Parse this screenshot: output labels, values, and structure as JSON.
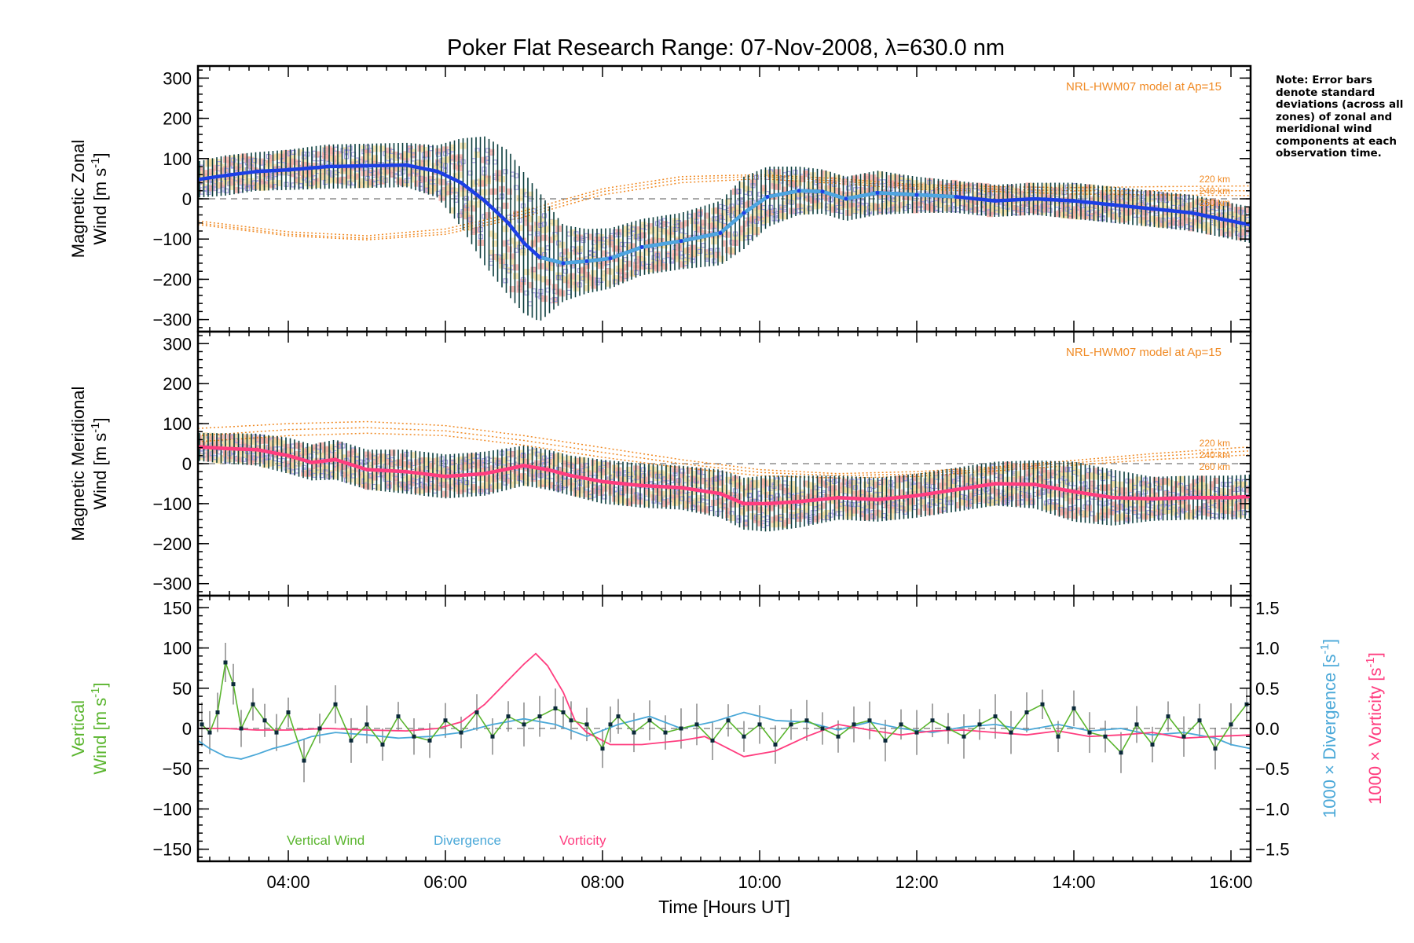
{
  "title": "Poker Flat Research Range: 07-Nov-2008, λ=630.0 nm",
  "note": "Note: Error bars denote standard deviations (across all zones) of zonal and meridional wind components at each observation time.",
  "xaxis": {
    "label": "Time [Hours UT]",
    "range": [
      2.85,
      16.25
    ],
    "ticks": [
      4,
      6,
      8,
      10,
      12,
      14,
      16
    ],
    "tick_labels": [
      "04:00",
      "06:00",
      "08:00",
      "10:00",
      "12:00",
      "14:00",
      "16:00"
    ]
  },
  "colors": {
    "zonal_mean": "#1d3fe6",
    "zonal_mean_light": "#4fa6e0",
    "meridional_mean": "#ff3d7f",
    "model": "#f08a24",
    "error_bar": "#0a3d3d",
    "zone_scatter": "#a9a0e0",
    "zone_pink": "#f7a8a0",
    "zone_yellow": "#f7dfa0",
    "vertical": "#5ab52e",
    "divergence": "#4aa8d8",
    "vorticity": "#ff3d7f"
  },
  "chart_data": [
    {
      "type": "line",
      "title": "Magnetic Zonal",
      "ylabel_line1": "Magnetic Zonal",
      "ylabel_line2": "Wind [m s",
      "ylabel_exp": "-1",
      "ylabel_close": "]",
      "ylim": [
        -330,
        330
      ],
      "yticks": [
        -300,
        -200,
        -100,
        0,
        100,
        200,
        300
      ],
      "model_label": "NRL-HWM07 model at Ap=15",
      "model_alt_labels": [
        "220 km",
        "240 km",
        "260 km"
      ],
      "model_curves": {
        "x": [
          2.85,
          4,
          5,
          6,
          7,
          8,
          9,
          10,
          11,
          12,
          13,
          14,
          15,
          16.25
        ],
        "series": [
          {
            "name": "220 km",
            "values": [
              -55,
              -82,
              -92,
              -75,
              -30,
              25,
              55,
              60,
              50,
              35,
              30,
              28,
              30,
              32
            ]
          },
          {
            "name": "240 km",
            "values": [
              -60,
              -88,
              -98,
              -82,
              -38,
              18,
              48,
              56,
              44,
              30,
              24,
              20,
              20,
              20
            ]
          },
          {
            "name": "260 km",
            "values": [
              -64,
              -92,
              -102,
              -88,
              -45,
              10,
              40,
              50,
              38,
              24,
              18,
              12,
              10,
              8
            ]
          }
        ]
      },
      "mean": {
        "x": [
          2.85,
          3.2,
          3.6,
          4.0,
          4.5,
          5.0,
          5.5,
          5.9,
          6.2,
          6.5,
          6.8,
          7.0,
          7.2,
          7.5,
          7.8,
          8.1,
          8.5,
          9.0,
          9.5,
          9.8,
          10.1,
          10.5,
          10.8,
          11.1,
          11.5,
          12.0,
          12.5,
          13.0,
          13.5,
          14.0,
          14.5,
          15.0,
          15.5,
          16.0,
          16.25
        ],
        "values": [
          48,
          58,
          68,
          72,
          80,
          82,
          84,
          68,
          40,
          -5,
          -60,
          -110,
          -145,
          -160,
          -155,
          -148,
          -120,
          -105,
          -85,
          -35,
          5,
          20,
          18,
          0,
          15,
          10,
          5,
          -5,
          0,
          -5,
          -15,
          -25,
          -35,
          -55,
          -65
        ]
      },
      "error_std": [
        45,
        50,
        48,
        50,
        55,
        55,
        55,
        65,
        110,
        160,
        180,
        175,
        160,
        95,
        80,
        75,
        70,
        70,
        80,
        90,
        75,
        60,
        55,
        55,
        55,
        45,
        40,
        40,
        40,
        45,
        45,
        45,
        45,
        45,
        45
      ]
    },
    {
      "type": "line",
      "title": "Magnetic Meridional",
      "ylabel_line1": "Magnetic Meridional",
      "ylabel_line2": "Wind [m s",
      "ylabel_exp": "-1",
      "ylabel_close": "]",
      "ylim": [
        -330,
        330
      ],
      "yticks": [
        -300,
        -200,
        -100,
        0,
        100,
        200,
        300
      ],
      "model_label": "NRL-HWM07 model at Ap=15",
      "model_alt_labels": [
        "220 km",
        "240 km",
        "260 km"
      ],
      "model_curves": {
        "x": [
          2.85,
          4,
          5,
          6,
          7,
          8,
          9,
          10,
          11,
          12,
          13,
          14,
          15,
          16.25
        ],
        "series": [
          {
            "name": "220 km",
            "values": [
              88,
              100,
              105,
              95,
              70,
              40,
              10,
              -15,
              -25,
              -20,
              -8,
              8,
              25,
              42
            ]
          },
          {
            "name": "240 km",
            "values": [
              70,
              85,
              90,
              82,
              58,
              28,
              0,
              -22,
              -30,
              -26,
              -12,
              2,
              18,
              32
            ]
          },
          {
            "name": "260 km",
            "values": [
              55,
              70,
              76,
              70,
              46,
              16,
              -10,
              -30,
              -36,
              -32,
              -18,
              -4,
              10,
              22
            ]
          }
        ]
      },
      "mean": {
        "x": [
          2.85,
          3.2,
          3.6,
          4.0,
          4.3,
          4.6,
          5.0,
          5.5,
          6.0,
          6.5,
          7.0,
          7.3,
          7.6,
          8.0,
          8.5,
          9.0,
          9.5,
          9.8,
          10.1,
          10.5,
          11.0,
          11.5,
          12.0,
          12.5,
          13.0,
          13.5,
          14.0,
          14.5,
          15.0,
          15.5,
          16.0,
          16.25
        ],
        "values": [
          42,
          38,
          35,
          20,
          3,
          10,
          -15,
          -20,
          -32,
          -25,
          -5,
          -15,
          -30,
          -45,
          -55,
          -60,
          -75,
          -100,
          -100,
          -95,
          -85,
          -90,
          -80,
          -65,
          -50,
          -52,
          -70,
          -85,
          -88,
          -85,
          -85,
          -82
        ]
      },
      "error_std": [
        35,
        38,
        40,
        45,
        45,
        50,
        50,
        55,
        55,
        55,
        50,
        50,
        50,
        55,
        55,
        55,
        60,
        65,
        70,
        65,
        55,
        55,
        55,
        55,
        55,
        60,
        75,
        70,
        55,
        55,
        55,
        55
      ]
    },
    {
      "type": "line",
      "ylabel_line1": "Vertical",
      "ylabel_line2": "Wind [m s",
      "ylabel_exp": "-1",
      "ylabel_close": "]",
      "ylim": [
        -165,
        165
      ],
      "yticks": [
        -150,
        -100,
        -50,
        0,
        50,
        100,
        150
      ],
      "y2label_div": "1000 × Divergence [s",
      "y2label_vort": "1000 × Vorticity [s",
      "y2_exp": "-1",
      "y2_close": "]",
      "y2lim": [
        -1.65,
        1.65
      ],
      "y2ticks": [
        -1.5,
        -1.0,
        -0.5,
        0.0,
        0.5,
        1.0,
        1.5
      ],
      "y2tick_labels": [
        "−1.5",
        "−1.0",
        "−0.5",
        "0.0",
        "0.5",
        "1.0",
        "1.5"
      ],
      "legend": [
        "Vertical Wind",
        "Divergence",
        "Vorticity"
      ],
      "series": [
        {
          "name": "Vertical Wind",
          "x": [
            2.9,
            3.0,
            3.1,
            3.2,
            3.3,
            3.4,
            3.55,
            3.7,
            3.85,
            4.0,
            4.2,
            4.4,
            4.6,
            4.8,
            5.0,
            5.2,
            5.4,
            5.6,
            5.8,
            6.0,
            6.2,
            6.4,
            6.6,
            6.8,
            7.0,
            7.2,
            7.4,
            7.5,
            7.6,
            7.8,
            8.0,
            8.1,
            8.2,
            8.4,
            8.6,
            8.8,
            9.0,
            9.2,
            9.4,
            9.6,
            9.8,
            10.0,
            10.2,
            10.4,
            10.6,
            10.8,
            11.0,
            11.2,
            11.4,
            11.6,
            11.8,
            12.0,
            12.2,
            12.4,
            12.6,
            12.8,
            13.0,
            13.2,
            13.4,
            13.6,
            13.8,
            14.0,
            14.2,
            14.4,
            14.6,
            14.8,
            15.0,
            15.2,
            15.4,
            15.6,
            15.8,
            16.0,
            16.2
          ],
          "values": [
            5,
            -5,
            20,
            82,
            55,
            0,
            30,
            10,
            -5,
            20,
            -40,
            0,
            30,
            -15,
            5,
            -20,
            15,
            -10,
            -15,
            10,
            -5,
            20,
            -10,
            15,
            5,
            15,
            25,
            20,
            10,
            5,
            -25,
            5,
            15,
            -5,
            10,
            -5,
            0,
            5,
            -15,
            10,
            -10,
            5,
            -20,
            5,
            10,
            0,
            -10,
            5,
            10,
            -15,
            5,
            -5,
            10,
            0,
            -10,
            5,
            15,
            -5,
            20,
            30,
            -10,
            25,
            -5,
            -10,
            -30,
            5,
            -20,
            15,
            -10,
            10,
            -25,
            5,
            30
          ]
        },
        {
          "name": "Divergence",
          "x": [
            2.85,
            3.0,
            3.2,
            3.4,
            3.6,
            3.8,
            4.0,
            4.3,
            4.6,
            5.0,
            5.4,
            5.8,
            6.2,
            6.6,
            7.0,
            7.4,
            7.8,
            8.2,
            8.6,
            9.0,
            9.4,
            9.8,
            10.2,
            10.6,
            11.0,
            11.4,
            11.8,
            12.2,
            12.6,
            13.0,
            13.4,
            13.8,
            14.2,
            14.6,
            15.0,
            15.4,
            15.8,
            16.0,
            16.25
          ],
          "values": [
            -0.15,
            -0.25,
            -0.35,
            -0.38,
            -0.32,
            -0.25,
            -0.2,
            -0.1,
            -0.05,
            -0.08,
            -0.12,
            -0.1,
            -0.05,
            0.05,
            0.12,
            0.05,
            -0.1,
            0.05,
            0.15,
            0.0,
            0.08,
            0.2,
            0.1,
            0.08,
            -0.02,
            0.08,
            0.0,
            -0.05,
            0.02,
            0.05,
            -0.02,
            0.05,
            -0.03,
            0.0,
            -0.08,
            -0.05,
            -0.12,
            -0.2,
            -0.25
          ]
        },
        {
          "name": "Vorticity",
          "x": [
            2.85,
            3.2,
            3.6,
            4.0,
            4.5,
            5.0,
            5.5,
            5.9,
            6.2,
            6.5,
            6.8,
            7.0,
            7.15,
            7.3,
            7.5,
            7.65,
            7.8,
            8.1,
            8.5,
            9.0,
            9.3,
            9.6,
            9.8,
            10.2,
            10.6,
            11.0,
            11.4,
            11.8,
            12.2,
            12.6,
            13.0,
            13.4,
            13.8,
            14.2,
            14.6,
            15.0,
            15.4,
            15.8,
            16.25
          ],
          "values": [
            0.0,
            0.0,
            -0.02,
            -0.02,
            0.0,
            -0.02,
            -0.03,
            0.0,
            0.08,
            0.3,
            0.6,
            0.8,
            0.93,
            0.78,
            0.45,
            0.1,
            -0.05,
            -0.2,
            -0.2,
            -0.15,
            -0.1,
            -0.25,
            -0.35,
            -0.28,
            -0.1,
            0.05,
            -0.02,
            -0.08,
            -0.03,
            -0.02,
            -0.05,
            -0.08,
            -0.03,
            -0.1,
            -0.08,
            -0.05,
            -0.12,
            -0.1,
            -0.08
          ]
        }
      ]
    }
  ]
}
